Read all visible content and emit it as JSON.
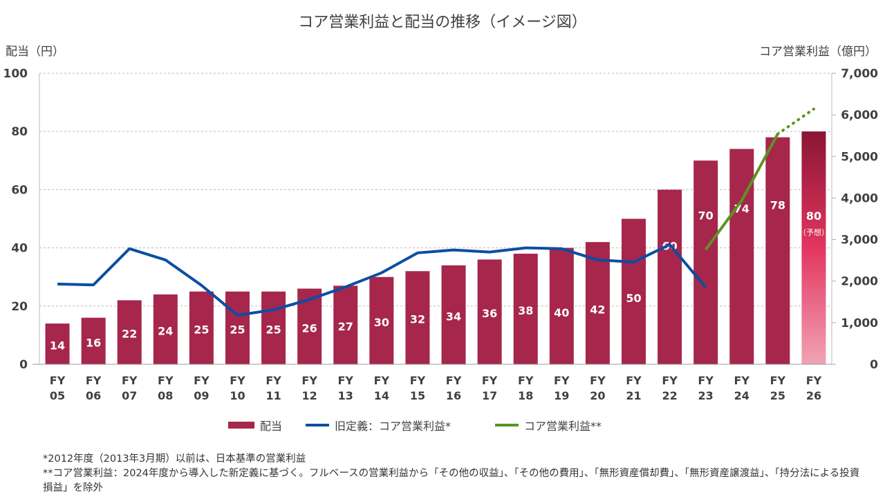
{
  "chart_data": {
    "type": "bar+line",
    "title": "コア営業利益と配当の推移（イメージ図）",
    "ylabel_left": "配当（円）",
    "ylabel_right": "コア営業利益（億円）",
    "ylim_left": [
      0,
      100
    ],
    "ylim_right": [
      0,
      7000
    ],
    "yticks_left": [
      "0",
      "20",
      "40",
      "60",
      "80",
      "100"
    ],
    "yticks_right": [
      "0",
      "1,000",
      "2,000",
      "3,000",
      "4,000",
      "5,000",
      "6,000",
      "7,000"
    ],
    "grid": true,
    "legend_position": "bottom",
    "categories": [
      "FY 05",
      "FY 06",
      "FY 07",
      "FY 08",
      "FY 09",
      "FY 10",
      "FY 11",
      "FY 12",
      "FY 13",
      "FY 14",
      "FY 15",
      "FY 16",
      "FY 17",
      "FY 18",
      "FY 19",
      "FY 20",
      "FY 21",
      "FY 22",
      "FY 23",
      "FY 24",
      "FY 25",
      "FY 26"
    ],
    "series": [
      {
        "name": "配当",
        "type": "bar",
        "axis": "left",
        "color": "#A6264C",
        "values": [
          14,
          16,
          22,
          24,
          25,
          25,
          25,
          26,
          27,
          30,
          32,
          34,
          36,
          38,
          40,
          42,
          50,
          60,
          70,
          74,
          78,
          80
        ]
      },
      {
        "name": "旧定義：コア営業利益*",
        "type": "line",
        "axis": "right",
        "color": "#0B4EA2",
        "values": [
          1930,
          1910,
          2780,
          2510,
          1900,
          1180,
          1310,
          1560,
          1860,
          2200,
          2680,
          2750,
          2700,
          2800,
          2780,
          2510,
          2460,
          2880,
          1850,
          null,
          null,
          null
        ]
      },
      {
        "name": "コア営業利益**",
        "type": "line",
        "axis": "right",
        "color": "#5C9421",
        "values": [
          null,
          null,
          null,
          null,
          null,
          null,
          null,
          null,
          null,
          null,
          null,
          null,
          null,
          null,
          null,
          null,
          null,
          null,
          2760,
          3940,
          5540,
          6140
        ],
        "dotted_last_segment": true
      }
    ],
    "forecast_label": "（予想）"
  },
  "notes": [
    "*2012年度（2013年3月期）以前は、日本基準の営業利益",
    "**コア営業利益：2024年度から導入した新定義に基づく。フルベースの営業利益から「その他の収益」、「その他の費用」、「無形資産償却費」、「無形資産譲渡益」、「持分法による投資損益」を除外"
  ]
}
